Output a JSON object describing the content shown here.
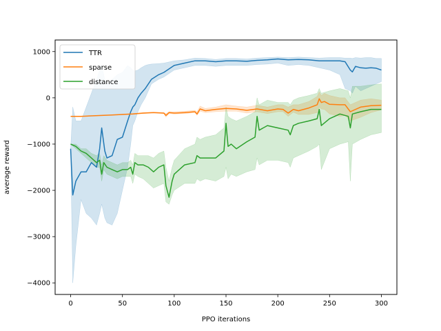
{
  "chart_data": {
    "type": "line",
    "title": "",
    "xlabel": "PPO iterations",
    "ylabel": "average reward",
    "xlim": [
      -15,
      315
    ],
    "ylim": [
      -4250,
      1250
    ],
    "xticks": [
      0,
      50,
      100,
      150,
      200,
      250,
      300
    ],
    "yticks": [
      -4000,
      -3000,
      -2000,
      -1000,
      0,
      1000
    ],
    "grid": false,
    "legend_position": "upper-left",
    "series": [
      {
        "name": "TTR",
        "color": "#1f77b4",
        "x": [
          0,
          2,
          5,
          10,
          15,
          20,
          25,
          28,
          30,
          33,
          35,
          40,
          45,
          50,
          55,
          58,
          60,
          62,
          65,
          68,
          72,
          75,
          78,
          85,
          90,
          100,
          110,
          120,
          130,
          140,
          150,
          160,
          170,
          180,
          190,
          200,
          210,
          220,
          230,
          240,
          250,
          260,
          265,
          270,
          272,
          275,
          280,
          285,
          290,
          295,
          300
        ],
        "y": [
          -1100,
          -2100,
          -1800,
          -1600,
          -1600,
          -1400,
          -1500,
          -1100,
          -650,
          -1150,
          -1300,
          -1250,
          -900,
          -850,
          -500,
          -300,
          -200,
          -150,
          0,
          100,
          200,
          300,
          400,
          500,
          550,
          700,
          750,
          800,
          800,
          780,
          800,
          800,
          790,
          810,
          820,
          840,
          820,
          830,
          820,
          800,
          800,
          800,
          780,
          600,
          560,
          680,
          650,
          640,
          650,
          640,
          600
        ],
        "lower": [
          -1100,
          -4000,
          -3200,
          -2200,
          -2500,
          -2600,
          -2750,
          -2500,
          -2300,
          -2600,
          -2700,
          -2750,
          -2500,
          -2000,
          -1500,
          -1000,
          -600,
          -500,
          -300,
          -150,
          0,
          150,
          300,
          400,
          450,
          600,
          650,
          700,
          700,
          680,
          700,
          700,
          700,
          720,
          730,
          750,
          700,
          720,
          700,
          650,
          600,
          500,
          200,
          150,
          100,
          250,
          150,
          200,
          250,
          300,
          350
        ],
        "upper": [
          -1100,
          -200,
          -500,
          -500,
          -200,
          100,
          400,
          600,
          700,
          400,
          300,
          400,
          500,
          550,
          700,
          650,
          600,
          580,
          600,
          650,
          700,
          720,
          730,
          740,
          750,
          800,
          820,
          860,
          850,
          830,
          850,
          850,
          840,
          860,
          870,
          880,
          870,
          880,
          870,
          860,
          870,
          870,
          860,
          860,
          850,
          870,
          860,
          870,
          870,
          850,
          850
        ]
      },
      {
        "name": "sparse",
        "color": "#ff7f0e",
        "x": [
          0,
          10,
          20,
          30,
          40,
          50,
          60,
          70,
          80,
          90,
          92,
          95,
          100,
          110,
          120,
          122,
          125,
          130,
          140,
          150,
          160,
          170,
          180,
          190,
          200,
          205,
          210,
          215,
          220,
          230,
          238,
          240,
          242,
          245,
          250,
          260,
          265,
          270,
          280,
          290,
          300
        ],
        "y": [
          -400,
          -400,
          -390,
          -380,
          -370,
          -360,
          -350,
          -330,
          -320,
          -330,
          -380,
          -320,
          -330,
          -320,
          -300,
          -350,
          -240,
          -280,
          -250,
          -230,
          -240,
          -270,
          -240,
          -280,
          -240,
          -250,
          -330,
          -250,
          -280,
          -220,
          -150,
          -20,
          -100,
          -80,
          -140,
          -150,
          -150,
          -300,
          -200,
          -170,
          -160
        ],
        "lower": [
          -400,
          -400,
          -390,
          -380,
          -370,
          -360,
          -360,
          -340,
          -330,
          -340,
          -420,
          -340,
          -350,
          -340,
          -320,
          -380,
          -290,
          -320,
          -300,
          -290,
          -290,
          -330,
          -300,
          -340,
          -300,
          -300,
          -400,
          -310,
          -360,
          -360,
          -320,
          -200,
          -240,
          -250,
          -350,
          -400,
          -380,
          -500,
          -420,
          -320,
          -260
        ],
        "upper": [
          -400,
          -400,
          -390,
          -380,
          -370,
          -350,
          -340,
          -320,
          -310,
          -320,
          -340,
          -300,
          -300,
          -290,
          -270,
          -300,
          -180,
          -230,
          -200,
          -150,
          -180,
          -200,
          -160,
          -200,
          -150,
          -150,
          -200,
          -150,
          -150,
          -80,
          30,
          130,
          50,
          100,
          50,
          0,
          0,
          -150,
          -50,
          -20,
          -50
        ]
      },
      {
        "name": "distance",
        "color": "#2ca02c",
        "x": [
          0,
          5,
          10,
          15,
          20,
          25,
          28,
          30,
          32,
          35,
          40,
          45,
          50,
          55,
          58,
          60,
          62,
          65,
          70,
          75,
          80,
          85,
          90,
          92,
          95,
          98,
          100,
          110,
          120,
          122,
          125,
          130,
          140,
          148,
          150,
          152,
          155,
          160,
          170,
          178,
          180,
          182,
          190,
          200,
          210,
          212,
          215,
          220,
          230,
          238,
          240,
          242,
          250,
          260,
          268,
          270,
          272,
          280,
          290,
          300
        ],
        "y": [
          -1000,
          -1050,
          -1150,
          -1200,
          -1300,
          -1400,
          -1350,
          -1650,
          -1400,
          -1500,
          -1550,
          -1600,
          -1550,
          -1550,
          -1500,
          -1650,
          -1400,
          -1450,
          -1450,
          -1500,
          -1600,
          -1500,
          -1450,
          -1900,
          -2150,
          -1800,
          -1650,
          -1450,
          -1400,
          -1250,
          -1300,
          -1300,
          -1300,
          -1150,
          -550,
          -1050,
          -1000,
          -1100,
          -950,
          -850,
          -400,
          -700,
          -600,
          -650,
          -700,
          -800,
          -600,
          -550,
          -500,
          -450,
          -250,
          -600,
          -450,
          -350,
          -400,
          -650,
          -350,
          -300,
          -250,
          -250
        ],
        "lower": [
          -1000,
          -1100,
          -1200,
          -1300,
          -1400,
          -1500,
          -1500,
          -1800,
          -1550,
          -1650,
          -1700,
          -1750,
          -1700,
          -1700,
          -1700,
          -1850,
          -1650,
          -1700,
          -1750,
          -1850,
          -1950,
          -1900,
          -1850,
          -2250,
          -2300,
          -2100,
          -2000,
          -1850,
          -1850,
          -1750,
          -1800,
          -1750,
          -1800,
          -1700,
          -1500,
          -1750,
          -1650,
          -1700,
          -1600,
          -1550,
          -1300,
          -1450,
          -1350,
          -1350,
          -1400,
          -1500,
          -1300,
          -1250,
          -1150,
          -1050,
          -1000,
          -1550,
          -1100,
          -1000,
          -950,
          -1800,
          -1000,
          -900,
          -800,
          -750
        ],
        "upper": [
          -1000,
          -1000,
          -1100,
          -1100,
          -1200,
          -1250,
          -1200,
          -1450,
          -1250,
          -1350,
          -1400,
          -1450,
          -1400,
          -1400,
          -1350,
          -1450,
          -1200,
          -1250,
          -1250,
          -1250,
          -1300,
          -1200,
          -1150,
          -1500,
          -1800,
          -1500,
          -1350,
          -1100,
          -1000,
          -850,
          -900,
          -850,
          -800,
          -650,
          -200,
          -400,
          -450,
          -500,
          -400,
          -300,
          0,
          -150,
          -50,
          -100,
          -100,
          -150,
          -50,
          0,
          50,
          100,
          200,
          100,
          150,
          200,
          150,
          0,
          250,
          250,
          280,
          300
        ]
      }
    ]
  }
}
